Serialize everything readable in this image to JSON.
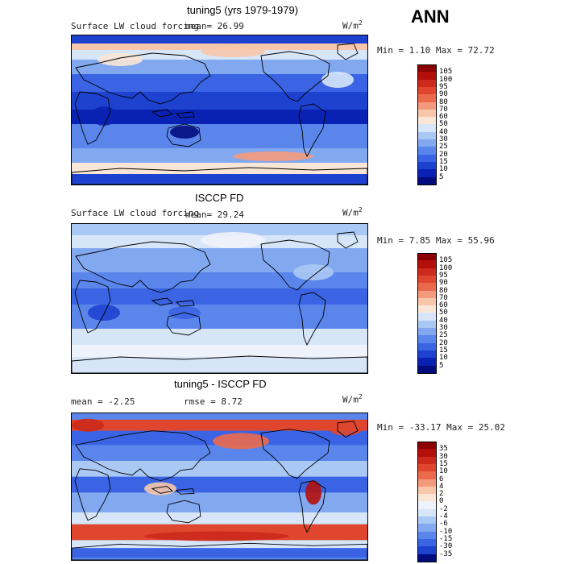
{
  "season": "ANN",
  "panels": [
    {
      "title": "tuning5 (yrs 1979-1979)",
      "variable": "Surface LW cloud forcing",
      "stat_text": "mean=   26.99",
      "unit": "W/m",
      "unit_exp": "2",
      "minmax": "Min =    1.10 Max =  72.72",
      "levels": [
        "105",
        "100",
        "95",
        "90",
        "80",
        "70",
        "60",
        "50",
        "40",
        "30",
        "25",
        "20",
        "15",
        "10",
        "5"
      ],
      "colors": [
        "#8b0000",
        "#b3100c",
        "#cc2a1c",
        "#e0462e",
        "#ec6a4c",
        "#f49a7c",
        "#f8c6aa",
        "#fae6d6",
        "#d6e6f8",
        "#aac8f4",
        "#82a8f0",
        "#5a86ec",
        "#3a64e4",
        "#1e42d0",
        "#0a22b4",
        "#020c7c"
      ],
      "map_style": "model"
    },
    {
      "title": "ISCCP FD",
      "variable": "Surface LW cloud forcing",
      "stat_text": "mean=   29.24",
      "unit": "W/m",
      "unit_exp": "2",
      "minmax": "Min =    7.85 Max =  55.96",
      "levels": [
        "105",
        "100",
        "95",
        "90",
        "80",
        "70",
        "60",
        "50",
        "40",
        "30",
        "25",
        "20",
        "15",
        "10",
        "5"
      ],
      "colors": [
        "#8b0000",
        "#b3100c",
        "#cc2a1c",
        "#e0462e",
        "#ec6a4c",
        "#f49a7c",
        "#f8c6aa",
        "#fae6d6",
        "#d6e6f8",
        "#aac8f4",
        "#82a8f0",
        "#5a86ec",
        "#3a64e4",
        "#1e42d0",
        "#0a22b4",
        "#020c7c"
      ],
      "map_style": "obs"
    },
    {
      "title": "tuning5 - ISCCP FD",
      "variable": "",
      "stat_text": "mean =   -2.25",
      "stat2_text": "rmse =    8.72",
      "unit": "W/m",
      "unit_exp": "2",
      "minmax": "Min = -33.17 Max =  25.02",
      "levels": [
        "35",
        "30",
        "15",
        "10",
        "6",
        "4",
        "2",
        "0",
        "-2",
        "-4",
        "-6",
        "-10",
        "-15",
        "-30",
        "-35"
      ],
      "colors": [
        "#8b0000",
        "#b3100c",
        "#cc2a1c",
        "#e0462e",
        "#ec6a4c",
        "#f49a7c",
        "#f8c6aa",
        "#fae6d6",
        "#eef2fa",
        "#d6e6f8",
        "#aac8f4",
        "#82a8f0",
        "#5a86ec",
        "#3a64e4",
        "#1e42d0",
        "#020c7c"
      ],
      "map_style": "diff"
    }
  ]
}
